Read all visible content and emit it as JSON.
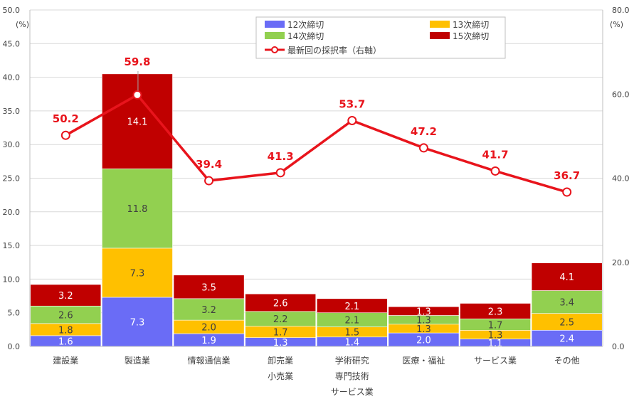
{
  "chart_data": {
    "type": "bar",
    "stacked": true,
    "categories": [
      [
        "建設業"
      ],
      [
        "製造業"
      ],
      [
        "情報通信業"
      ],
      [
        "卸売業",
        "小売業"
      ],
      [
        "学術研究",
        "専門技術",
        "サービス業"
      ],
      [
        "医療・福祉"
      ],
      [
        "サービス業"
      ],
      [
        "その他"
      ]
    ],
    "series": [
      {
        "name": "12次締切",
        "color": "#6a6cf6",
        "values": [
          1.6,
          7.3,
          1.9,
          1.3,
          1.4,
          2.0,
          1.1,
          2.4
        ]
      },
      {
        "name": "13次締切",
        "color": "#ffc000",
        "values": [
          1.8,
          7.3,
          2.0,
          1.7,
          1.5,
          1.3,
          1.3,
          2.5
        ]
      },
      {
        "name": "14次締切",
        "color": "#92d050",
        "values": [
          2.6,
          11.8,
          3.2,
          2.2,
          2.1,
          1.3,
          1.7,
          3.4
        ]
      },
      {
        "name": "15次締切",
        "color": "#c00000",
        "values": [
          3.2,
          14.1,
          3.5,
          2.6,
          2.1,
          1.3,
          2.3,
          4.1
        ]
      }
    ],
    "line_series": {
      "name": "最新回の採択率（右軸）",
      "color": "#e8141c",
      "axis": "right",
      "values": [
        50.2,
        59.8,
        39.4,
        41.3,
        53.7,
        47.2,
        41.7,
        36.7
      ]
    },
    "y_left": {
      "unit": "(%)",
      "min": 0,
      "max": 50,
      "step": 5,
      "tick_labels": [
        "0.0",
        "5.0",
        "10.0",
        "15.0",
        "20.0",
        "25.0",
        "30.0",
        "35.0",
        "40.0",
        "45.0",
        "50.0"
      ]
    },
    "y_right": {
      "unit": "(%)",
      "min": 0,
      "max": 80,
      "step": 20,
      "tick_labels": [
        "0.0",
        "20.0",
        "40.0",
        "60.0",
        "80.0"
      ]
    },
    "grid": true,
    "legend_position": "top-right"
  }
}
